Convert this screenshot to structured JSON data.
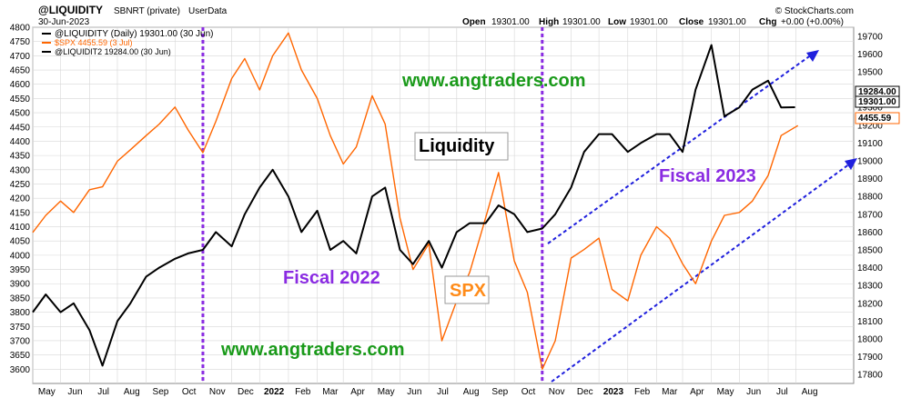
{
  "header": {
    "symbol": "@LIQUIDITY",
    "name": "SBNRT (private)",
    "source": "UserData",
    "date": "30-Jun-2023",
    "brand": "© StockCharts.com",
    "ohlc": {
      "open_label": "Open",
      "open": "19301.00",
      "high_label": "High",
      "high": "19301.00",
      "low_label": "Low",
      "low": "19301.00",
      "close_label": "Close",
      "close": "19301.00",
      "chg_label": "Chg",
      "chg": "+0.00 (+0.00%)"
    }
  },
  "legend": [
    {
      "label": "@LIQUIDITY (Daily) 19301.00 (30 Jun)",
      "color": "#000000"
    },
    {
      "label": "$SPX 4455.59 (3 Jul)",
      "color": "#ff6600"
    },
    {
      "label": "@LIQUIDIT2 19284.00 (30 Jun)",
      "color": "#000000"
    }
  ],
  "annotations": {
    "website_top": "www.angtraders.com",
    "website_bottom": "www.angtraders.com",
    "liquidity_label": "Liquidity",
    "spx_label": "SPX",
    "fiscal_2022": "Fiscal 2022",
    "fiscal_2023": "Fiscal 2023"
  },
  "price_tags": {
    "right_a": "19284.00",
    "right_b": "19301.00",
    "right_spx": "4455.59"
  },
  "colors": {
    "spx": "#ff6600",
    "liquidity": "#000000",
    "fiscal_line": "#8a2be2",
    "trend": "#1f1fdd",
    "website": "#1a9a1a",
    "fiscal_text": "#8a2be2",
    "spx_text": "#ff8c1a",
    "grid": "#d7d7d7"
  },
  "chart_data": {
    "type": "line",
    "x_tick_labels": [
      "May",
      "Jun",
      "Jul",
      "Aug",
      "Sep",
      "Oct",
      "Nov",
      "Dec",
      "2022",
      "Feb",
      "Mar",
      "Apr",
      "May",
      "Jun",
      "Jul",
      "Aug",
      "Sep",
      "Oct",
      "Nov",
      "Dec",
      "2023",
      "Feb",
      "Mar",
      "Apr",
      "May",
      "Jun",
      "Jul",
      "Aug"
    ],
    "y_left": {
      "label": "SPX",
      "min": 3550,
      "max": 4800,
      "ticks": [
        3600,
        3650,
        3700,
        3750,
        3800,
        3850,
        3900,
        3950,
        4000,
        4050,
        4100,
        4150,
        4200,
        4250,
        4300,
        4350,
        4400,
        4450,
        4500,
        4550,
        4600,
        4650,
        4700,
        4750,
        4800
      ]
    },
    "y_right": {
      "label": "Liquidity",
      "min": 17750,
      "max": 19750,
      "ticks": [
        17800,
        17900,
        18000,
        18100,
        18200,
        18300,
        18400,
        18500,
        18600,
        18700,
        18800,
        18900,
        19000,
        19100,
        19200,
        19300,
        19400,
        19500,
        19600,
        19700
      ]
    },
    "fiscal_year_markers": [
      "2021-10-01",
      "2022-10-01"
    ],
    "series": [
      {
        "name": "$SPX",
        "axis": "left",
        "x": [
          "2021-04-01",
          "2021-04-15",
          "2021-05-01",
          "2021-05-15",
          "2021-06-01",
          "2021-06-15",
          "2021-07-01",
          "2021-07-15",
          "2021-08-01",
          "2021-08-15",
          "2021-09-01",
          "2021-09-15",
          "2021-10-01",
          "2021-10-15",
          "2021-11-01",
          "2021-11-15",
          "2021-12-01",
          "2021-12-15",
          "2022-01-01",
          "2022-01-15",
          "2022-02-01",
          "2022-02-15",
          "2022-03-01",
          "2022-03-15",
          "2022-04-01",
          "2022-04-15",
          "2022-05-01",
          "2022-05-15",
          "2022-06-01",
          "2022-06-15",
          "2022-07-01",
          "2022-07-15",
          "2022-08-01",
          "2022-08-15",
          "2022-09-01",
          "2022-09-15",
          "2022-10-01",
          "2022-10-15",
          "2022-11-01",
          "2022-11-15",
          "2022-12-01",
          "2022-12-15",
          "2023-01-01",
          "2023-01-15",
          "2023-02-01",
          "2023-02-15",
          "2023-03-01",
          "2023-03-15",
          "2023-04-01",
          "2023-04-15",
          "2023-05-01",
          "2023-05-15",
          "2023-06-01",
          "2023-06-15",
          "2023-07-03"
        ],
        "values": [
          4080,
          4140,
          4190,
          4150,
          4230,
          4240,
          4330,
          4370,
          4420,
          4460,
          4520,
          4440,
          4360,
          4470,
          4620,
          4690,
          4580,
          4700,
          4780,
          4650,
          4550,
          4420,
          4320,
          4380,
          4560,
          4460,
          4130,
          3950,
          4040,
          3700,
          3840,
          3940,
          4130,
          4290,
          3980,
          3870,
          3600,
          3700,
          3990,
          4020,
          4060,
          3880,
          3840,
          4000,
          4100,
          4060,
          3970,
          3900,
          4050,
          4140,
          4150,
          4190,
          4280,
          4420,
          4455
        ]
      },
      {
        "name": "@LIQUIDITY",
        "axis": "right",
        "x": [
          "2021-04-01",
          "2021-04-15",
          "2021-05-01",
          "2021-05-15",
          "2021-06-01",
          "2021-06-15",
          "2021-07-01",
          "2021-07-15",
          "2021-08-01",
          "2021-08-15",
          "2021-09-01",
          "2021-09-15",
          "2021-10-01",
          "2021-10-15",
          "2021-11-01",
          "2021-11-15",
          "2021-12-01",
          "2021-12-15",
          "2022-01-01",
          "2022-01-15",
          "2022-02-01",
          "2022-02-15",
          "2022-03-01",
          "2022-03-15",
          "2022-04-01",
          "2022-04-15",
          "2022-05-01",
          "2022-05-15",
          "2022-06-01",
          "2022-06-15",
          "2022-07-01",
          "2022-07-15",
          "2022-08-01",
          "2022-08-15",
          "2022-09-01",
          "2022-09-15",
          "2022-10-01",
          "2022-10-15",
          "2022-11-01",
          "2022-11-15",
          "2022-12-01",
          "2022-12-15",
          "2023-01-01",
          "2023-01-15",
          "2023-02-01",
          "2023-02-15",
          "2023-03-01",
          "2023-03-15",
          "2023-04-01",
          "2023-04-15",
          "2023-05-01",
          "2023-05-15",
          "2023-06-01",
          "2023-06-15",
          "2023-06-30"
        ],
        "values": [
          18150,
          18250,
          18150,
          18200,
          18050,
          17850,
          18100,
          18200,
          18350,
          18400,
          18450,
          18480,
          18500,
          18600,
          18520,
          18700,
          18850,
          18950,
          18800,
          18600,
          18720,
          18500,
          18550,
          18480,
          18800,
          18850,
          18500,
          18420,
          18550,
          18400,
          18600,
          18650,
          18650,
          18750,
          18700,
          18600,
          18620,
          18700,
          18850,
          19050,
          19150,
          19150,
          19050,
          19100,
          19150,
          19150,
          19050,
          19400,
          19650,
          19250,
          19300,
          19400,
          19450,
          19300,
          19301
        ]
      }
    ]
  }
}
